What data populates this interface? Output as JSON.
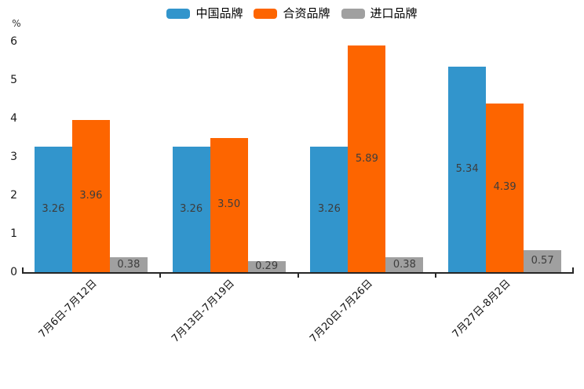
{
  "chart_data": {
    "type": "bar",
    "title": "",
    "xlabel": "",
    "ylabel": "%",
    "ylim": [
      0,
      6
    ],
    "y_ticks": [
      0,
      1,
      2,
      3,
      4,
      5,
      6
    ],
    "grid": false,
    "legend_position": "top-center",
    "categories": [
      "7月6日-7月12日",
      "7月13日-7月19日",
      "7月20日-7月26日",
      "7月27日-8月2日"
    ],
    "series": [
      {
        "name": "中国品牌",
        "color": "#3295cc",
        "values": [
          3.26,
          3.26,
          3.26,
          5.34
        ],
        "labels": [
          "3.26",
          "3.26",
          "3.26",
          "5.34"
        ]
      },
      {
        "name": "合资品牌",
        "color": "#fd6500",
        "values": [
          3.96,
          3.5,
          5.89,
          4.39
        ],
        "labels": [
          "3.96",
          "3.50",
          "5.89",
          "4.39"
        ]
      },
      {
        "name": "进口品牌",
        "color": "#a0a0a0",
        "values": [
          0.38,
          0.29,
          0.38,
          0.57
        ],
        "labels": [
          "0.38",
          "0.29",
          "0.38",
          "0.57"
        ]
      }
    ],
    "value_label_color": "#3d3d3d",
    "axis_color": "#262626"
  }
}
